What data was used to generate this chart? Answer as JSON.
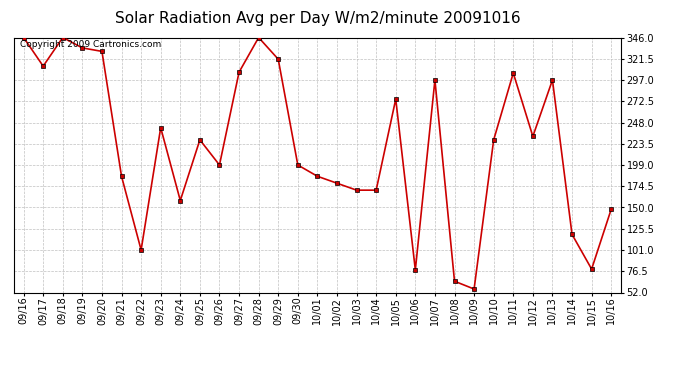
{
  "title": "Solar Radiation Avg per Day W/m2/minute 20091016",
  "copyright": "Copyright 2009 Cartronics.com",
  "labels": [
    "09/16",
    "09/17",
    "09/18",
    "09/19",
    "09/20",
    "09/21",
    "09/22",
    "09/23",
    "09/24",
    "09/25",
    "09/26",
    "09/27",
    "09/28",
    "09/29",
    "09/30",
    "10/01",
    "10/02",
    "10/03",
    "10/04",
    "10/05",
    "10/06",
    "10/07",
    "10/08",
    "10/09",
    "10/10",
    "10/11",
    "10/12",
    "10/13",
    "10/14",
    "10/15",
    "10/16"
  ],
  "values": [
    346,
    313,
    346,
    334,
    330,
    186,
    101,
    242,
    158,
    228,
    199,
    306,
    346,
    321,
    199,
    186,
    178,
    170,
    170,
    275,
    78,
    297,
    65,
    56,
    228,
    305,
    232,
    297,
    119,
    79,
    148
  ],
  "line_color": "#cc0000",
  "marker": "s",
  "marker_size": 3,
  "bg_color": "#ffffff",
  "grid_color": "#c0c0c0",
  "ylim": [
    52.0,
    346.0
  ],
  "yticks": [
    52.0,
    76.5,
    101.0,
    125.5,
    150.0,
    174.5,
    199.0,
    223.5,
    248.0,
    272.5,
    297.0,
    321.5,
    346.0
  ],
  "title_fontsize": 11,
  "tick_fontsize": 7,
  "copyright_fontsize": 6.5
}
